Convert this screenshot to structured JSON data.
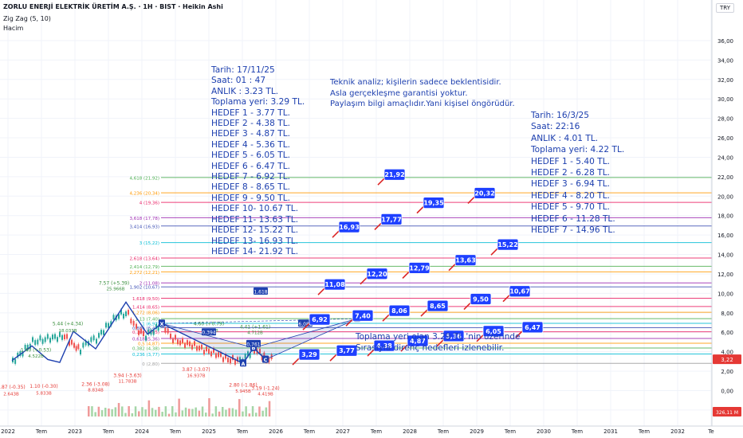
{
  "header": {
    "title": "ZORLU ENERJİ ELEKTRİK ÜRETİM A.Ş. · 1H · BIST · Heikin Ashi",
    "indicator1": "Zig Zag (5, 10)",
    "indicator2": "Hacim",
    "currency": "TRY"
  },
  "colors": {
    "zigzag": "#1e40af",
    "box_fill": "#1e40ff",
    "arrow": "#dc2626",
    "note_text": "#1e40af",
    "price_label": "#e53935",
    "volume_label": "#e53935"
  },
  "note_left": [
    "Tarih:    17/11/25",
    "Saat:     01 : 47",
    "ANLIK :  3.23 TL.",
    "Toplama yeri: 3.29 TL.",
    "HEDEF  1 - 3.77 TL.",
    "HEDEF  2 - 4.38 TL.",
    "HEDEF  3 - 4.87 TL.",
    "HEDEF  4 - 5.36 TL.",
    "HEDEF  5 - 6.05 TL.",
    "HEDEF  6 - 6.47 TL.",
    "HEDEF  7 - 6.92 TL.",
    "HEDEF  8 - 8.65 TL.",
    "HEDEF  9 - 9.50 TL.",
    "HEDEF 10- 10.67 TL.",
    "HEDEF 11- 13.63 TL.",
    "HEDEF 12- 15.22 TL.",
    "HEDEF 13- 16.93 TL.",
    "HEDEF 14- 21.92 TL."
  ],
  "note_middle": [
    "Teknik analiz; kişilerin sadece beklentisidir.",
    "Asla gerçekleşme garantisi yoktur.",
    "Paylaşım bilgi amaçlıdır.Yani kişisel öngörüdür."
  ],
  "note_right": [
    "Tarih:    16/3/25",
    "Saat:     22:16",
    "ANLIK :  4.01 TL.",
    "Toplama yeri: 4.22 TL.",
    "HEDEF 1 - 5.40 TL.",
    "HEDEF 2 - 6.28 TL.",
    "HEDEF 3 - 6.94 TL.",
    "HEDEF 4 - 8.20 TL.",
    "HEDEF 5 - 9.70 TL.",
    "HEDEF 6 - 11.28 TL.",
    "HEDEF 7 - 14.96 TL."
  ],
  "note_bottom": [
    "Toplama yeri olan 3.29 TL.'nin üzerinde",
    "Sırasıyla direnç hedefleri izlenebilir."
  ],
  "chart_data": {
    "type": "candlestick",
    "y_ticks": [
      "36,00",
      "34,00",
      "32,00",
      "30,00",
      "28,00",
      "26,00",
      "24,00",
      "22,00",
      "20,00",
      "18,00",
      "16,00",
      "14,00",
      "12,00",
      "10,00",
      "8,00",
      "6,00",
      "4,00",
      "2,00",
      "0,00",
      "-2,00"
    ],
    "ylim": [
      -3,
      37
    ],
    "x_ticks": [
      "2022",
      "Tem",
      "2023",
      "Tem",
      "2024",
      "Tem",
      "2025",
      "Tem",
      "2026",
      "Tem",
      "2027",
      "Tem",
      "2028",
      "Tem",
      "2029",
      "Tem",
      "2030",
      "Tem",
      "2031",
      "Tem",
      "2032",
      "Te"
    ],
    "price_last": "3,22",
    "volume_last": "326,11 M",
    "fib_levels": [
      {
        "label": "4,618 (21,92)",
        "value": 21.92,
        "color": "#4caf50"
      },
      {
        "label": "4,236 (20,34)",
        "value": 20.34,
        "color": "#ff9800"
      },
      {
        "label": "4 (19,36)",
        "value": 19.36,
        "color": "#e91e63"
      },
      {
        "label": "3,618 (17,78)",
        "value": 17.78,
        "color": "#9c27b0"
      },
      {
        "label": "3,414 (16,93)",
        "value": 16.93,
        "color": "#3f51b5"
      },
      {
        "label": "3 (15,22)",
        "value": 15.22,
        "color": "#00bcd4"
      },
      {
        "label": "2,618 (13,64)",
        "value": 13.64,
        "color": "#e91e63"
      },
      {
        "label": "2,414 (12,79)",
        "value": 12.79,
        "color": "#4caf50"
      },
      {
        "label": "2,272 (12,21)",
        "value": 12.21,
        "color": "#ff9800"
      },
      {
        "label": "2 (11,08)",
        "value": 11.08,
        "color": "#9c27b0"
      },
      {
        "label": "1,902 (10,67)",
        "value": 10.67,
        "color": "#3f51b5"
      },
      {
        "label": "1,618 (9,50)",
        "value": 9.5,
        "color": "#e91e63"
      },
      {
        "label": "1,414 (8,65)",
        "value": 8.65,
        "color": "#e91e63"
      },
      {
        "label": "1,272 (8,06)",
        "value": 8.06,
        "color": "#ff9800"
      },
      {
        "label": "1,13 (7,40)",
        "value": 7.4,
        "color": "#4caf50"
      },
      {
        "label": "1 (6,92)",
        "value": 6.92,
        "color": "#00bcd4"
      },
      {
        "label": "0,886 (6,47)",
        "value": 6.47,
        "color": "#3f51b5"
      },
      {
        "label": "0,786 (6,05)",
        "value": 6.05,
        "color": "#e91e63"
      },
      {
        "label": "0,618 (5,36)",
        "value": 5.36,
        "color": "#9c27b0"
      },
      {
        "label": "0,5 (4,87)",
        "value": 4.87,
        "color": "#ff9800"
      },
      {
        "label": "0,382 (4,38)",
        "value": 4.38,
        "color": "#4caf50"
      },
      {
        "label": "0,236 (3,77)",
        "value": 3.77,
        "color": "#00bcd4"
      },
      {
        "label": "0 (2,80)",
        "value": 2.8,
        "color": "#9e9e9e"
      }
    ],
    "targets": [
      {
        "label": "3,29",
        "value": 3.29
      },
      {
        "label": "3,77",
        "value": 3.77
      },
      {
        "label": "4,38",
        "value": 4.38
      },
      {
        "label": "4,87",
        "value": 4.87
      },
      {
        "label": "5,36",
        "value": 5.36
      },
      {
        "label": "6,05",
        "value": 6.05
      },
      {
        "label": "6,47",
        "value": 6.47
      },
      {
        "label": "6,92",
        "value": 6.92
      },
      {
        "label": "7,40",
        "value": 7.4
      },
      {
        "label": "8,06",
        "value": 8.06
      },
      {
        "label": "8,65",
        "value": 8.65
      },
      {
        "label": "9,50",
        "value": 9.5
      },
      {
        "label": "10,67",
        "value": 10.67
      },
      {
        "label": "11,08",
        "value": 11.08
      },
      {
        "label": "12,20",
        "value": 12.2
      },
      {
        "label": "12,79",
        "value": 12.79
      },
      {
        "label": "13,63",
        "value": 13.63
      },
      {
        "label": "15,22",
        "value": 15.22
      },
      {
        "label": "16,93",
        "value": 16.93
      },
      {
        "label": "17,77",
        "value": 17.77
      },
      {
        "label": "19,35",
        "value": 19.35
      },
      {
        "label": "20,32",
        "value": 20.32
      },
      {
        "label": "21,92",
        "value": 21.92
      }
    ],
    "pattern_points": [
      {
        "label": "X",
        "value": 6.9
      },
      {
        "label": "A",
        "value": 2.8
      },
      {
        "label": "B",
        "value": 4.41
      },
      {
        "label": "C",
        "value": 3.19
      },
      {
        "label": "D",
        "value": 7.4
      }
    ],
    "pattern_ratios": [
      "0,394",
      "1,618",
      "0,761",
      "6,088"
    ],
    "zigzag_labels": [
      "5.44 (+4.34)",
      "18.033B",
      "7.57 (+5.39)",
      "25.966B",
      "4.60 (+0.79)",
      "4.215B",
      "4.41 (+1.61)",
      "4.712B",
      "3.87 (-3.07)",
      "16.937B",
      "3.94 (-3.63)",
      "11.783B",
      "2.36 (-3.08)",
      "8.834B",
      "2.80 (-1.86)",
      "5.945B",
      "3.19 (-1.24)",
      "4.419B",
      "0.87 (-0.35)",
      "2.643B",
      "1.10 (-0.30)",
      "5.833B",
      "1.40 (+0.53)",
      "4.522B"
    ]
  }
}
